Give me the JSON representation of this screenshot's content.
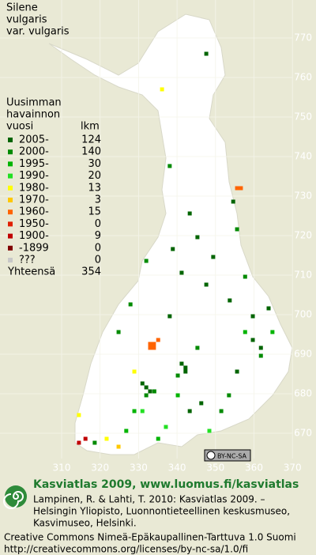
{
  "map": {
    "title": [
      "Silene",
      "vulgaris",
      "var. vulgaris"
    ],
    "north_ticks": [
      770,
      760,
      750,
      740,
      730,
      720,
      710,
      700,
      690,
      680,
      670
    ],
    "east_ticks": [
      310,
      320,
      330,
      340,
      350,
      360,
      370
    ],
    "legend": {
      "header": [
        "Uusimman",
        "havainnon",
        "vuosi"
      ],
      "count_header": "lkm",
      "rows": [
        {
          "label": "2005-",
          "count": 124,
          "color": "#006400"
        },
        {
          "label": "2000-",
          "count": 140,
          "color": "#008a00"
        },
        {
          "label": "1995-",
          "count": 30,
          "color": "#00b400"
        },
        {
          "label": "1990-",
          "count": 20,
          "color": "#22e022"
        },
        {
          "label": "1980-",
          "count": 13,
          "color": "#ffff00"
        },
        {
          "label": "1970-",
          "count": 3,
          "color": "#ffc800"
        },
        {
          "label": "1960-",
          "count": 15,
          "color": "#ff6400"
        },
        {
          "label": "1950-",
          "count": 0,
          "color": "#e02000"
        },
        {
          "label": "1900-",
          "count": 9,
          "color": "#c00000"
        },
        {
          "label": "-1899",
          "count": 0,
          "color": "#800000"
        },
        {
          "label": "???",
          "count": 0,
          "color": "#c8c8c8"
        }
      ],
      "total_label": "Yhteensä",
      "total": 354
    },
    "cells": [
      {
        "e": 347.6,
        "n": 766.0,
        "class": 0
      },
      {
        "e": 336.1,
        "n": 757.0,
        "class": 4
      },
      {
        "e": 338.1,
        "n": 737.6,
        "class": 1
      },
      {
        "e": 355.6,
        "n": 732.0,
        "class": 6
      },
      {
        "e": 356.6,
        "n": 732.0,
        "class": 6
      },
      {
        "e": 354.6,
        "n": 728.6,
        "class": 0
      },
      {
        "e": 343.3,
        "n": 725.6,
        "class": 0
      },
      {
        "e": 345.3,
        "n": 719.6,
        "class": 0
      },
      {
        "e": 332.0,
        "n": 713.6,
        "class": 1
      },
      {
        "e": 349.4,
        "n": 714.6,
        "class": 0
      },
      {
        "e": 338.9,
        "n": 716.6,
        "class": 0
      },
      {
        "e": 355.6,
        "n": 721.6,
        "class": 1
      },
      {
        "e": 327.9,
        "n": 702.6,
        "class": 1
      },
      {
        "e": 333.0,
        "n": 692.6,
        "class": 6
      },
      {
        "e": 334.0,
        "n": 692.6,
        "class": 6
      },
      {
        "e": 335.1,
        "n": 693.6,
        "class": 6
      },
      {
        "e": 333.0,
        "n": 691.6,
        "class": 6
      },
      {
        "e": 334.0,
        "n": 691.6,
        "class": 6
      },
      {
        "e": 359.7,
        "n": 699.6,
        "class": 0
      },
      {
        "e": 361.8,
        "n": 691.6,
        "class": 0
      },
      {
        "e": 357.7,
        "n": 695.6,
        "class": 2
      },
      {
        "e": 341.2,
        "n": 687.6,
        "class": 0
      },
      {
        "e": 342.2,
        "n": 685.6,
        "class": 0
      },
      {
        "e": 332.0,
        "n": 681.6,
        "class": 0
      },
      {
        "e": 334.1,
        "n": 680.6,
        "class": 1
      },
      {
        "e": 333.0,
        "n": 680.6,
        "class": 0
      },
      {
        "e": 328.9,
        "n": 685.6,
        "class": 4
      },
      {
        "e": 340.2,
        "n": 679.6,
        "class": 2
      },
      {
        "e": 328.9,
        "n": 675.6,
        "class": 2
      },
      {
        "e": 326.8,
        "n": 670.6,
        "class": 2
      },
      {
        "e": 314.5,
        "n": 674.6,
        "class": 4
      },
      {
        "e": 316.2,
        "n": 668.6,
        "class": 8
      },
      {
        "e": 314.5,
        "n": 667.6,
        "class": 8
      },
      {
        "e": 318.6,
        "n": 667.6,
        "class": 1
      },
      {
        "e": 321.7,
        "n": 668.6,
        "class": 4
      },
      {
        "e": 346.3,
        "n": 677.6,
        "class": 0
      },
      {
        "e": 353.5,
        "n": 679.6,
        "class": 1
      },
      {
        "e": 355.6,
        "n": 685.6,
        "class": 0
      },
      {
        "e": 361.8,
        "n": 689.6,
        "class": 1
      },
      {
        "e": 364.8,
        "n": 695.6,
        "class": 2
      },
      {
        "e": 363.8,
        "n": 701.6,
        "class": 0
      },
      {
        "e": 348.4,
        "n": 670.6,
        "class": 3
      },
      {
        "e": 337.1,
        "n": 671.6,
        "class": 3
      },
      {
        "e": 343.3,
        "n": 675.6,
        "class": 0
      },
      {
        "e": 351.5,
        "n": 675.6,
        "class": 1
      },
      {
        "e": 345.3,
        "n": 691.6,
        "class": 1
      },
      {
        "e": 338.1,
        "n": 699.6,
        "class": 0
      },
      {
        "e": 324.8,
        "n": 695.6,
        "class": 1
      },
      {
        "e": 347.6,
        "n": 707.6,
        "class": 0
      },
      {
        "e": 353.7,
        "n": 703.6,
        "class": 0
      },
      {
        "e": 357.7,
        "n": 709.6,
        "class": 1
      },
      {
        "e": 341.2,
        "n": 710.6,
        "class": 0
      },
      {
        "e": 331.0,
        "n": 675.6,
        "class": 3
      },
      {
        "e": 335.1,
        "n": 668.6,
        "class": 2
      },
      {
        "e": 324.8,
        "n": 666.6,
        "class": 5
      },
      {
        "e": 331.0,
        "n": 682.6,
        "class": 0
      },
      {
        "e": 332.0,
        "n": 679.6,
        "class": 1
      },
      {
        "e": 342.2,
        "n": 686.6,
        "class": 0
      },
      {
        "e": 340.2,
        "n": 684.6,
        "class": 1
      },
      {
        "e": 359.7,
        "n": 693.6,
        "class": 0
      }
    ],
    "license_badge": "BY-NC-SA"
  },
  "footer": {
    "heading": "Kasviatlas 2009, www.luomus.fi/kasviatlas",
    "citation": [
      "Lampinen, R. & Lahti, T. 2010: Kasviatlas 2009. –",
      "Helsingin Yliopisto, Luonnontieteellinen keskusmuseo,",
      "Kasvimuseo, Helsinki."
    ],
    "license": [
      "Creative Commons Nimeä-Epäkaupallinen-Tarttuva 1.0 Suomi",
      "http://creativecommons.org/licenses/by-nc-sa/1.0/fi"
    ]
  }
}
